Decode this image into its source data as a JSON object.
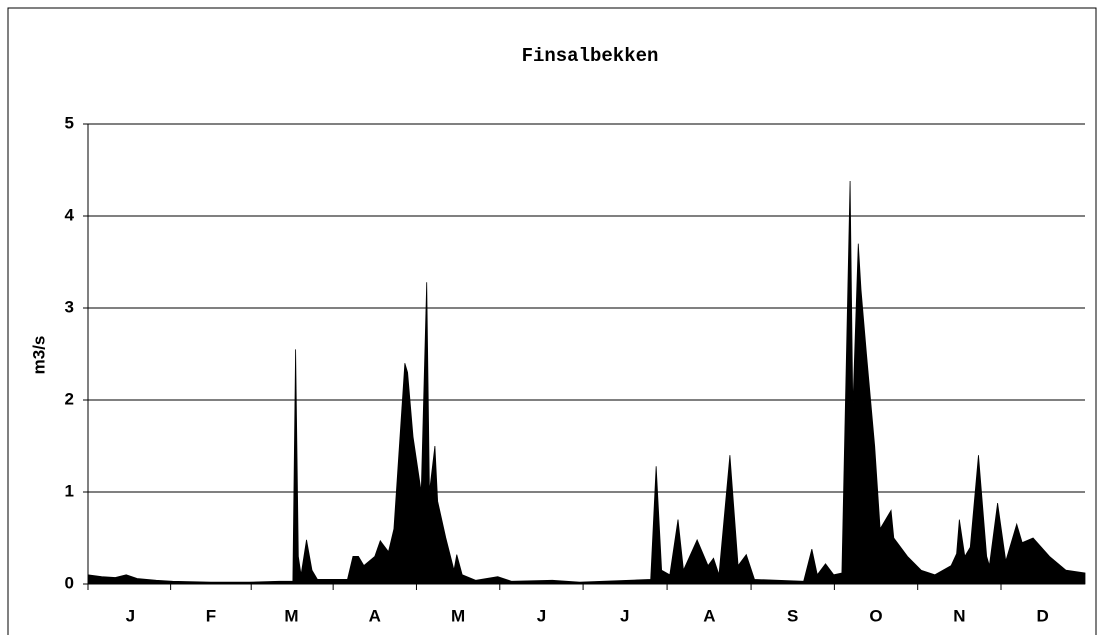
{
  "chart_data": {
    "type": "area",
    "title": "Finsalbekken",
    "y_label": "m3/s",
    "color": "#000000",
    "grid": true,
    "xlim": [
      0,
      365
    ],
    "xticks": [
      {
        "value": 15.5,
        "label": "J"
      },
      {
        "value": 45,
        "label": "F"
      },
      {
        "value": 74.5,
        "label": "M"
      },
      {
        "value": 105,
        "label": "A"
      },
      {
        "value": 135.5,
        "label": "M"
      },
      {
        "value": 166,
        "label": "J"
      },
      {
        "value": 196.5,
        "label": "J"
      },
      {
        "value": 227.5,
        "label": "A"
      },
      {
        "value": 258,
        "label": "S"
      },
      {
        "value": 288.5,
        "label": "O"
      },
      {
        "value": 319,
        "label": "N"
      },
      {
        "value": 349.5,
        "label": "D"
      }
    ],
    "ylim": [
      0,
      5
    ],
    "yticks": [
      0,
      1,
      2,
      3,
      4,
      5
    ],
    "x": [
      0,
      5,
      10,
      14,
      18,
      25,
      31,
      45,
      59,
      70,
      75,
      76,
      77,
      78,
      80,
      82,
      84,
      95,
      97,
      99,
      101,
      105,
      107,
      110,
      112,
      114,
      116,
      117,
      119,
      122,
      124,
      125,
      127,
      128,
      131,
      134,
      135,
      137,
      142,
      150,
      155,
      170,
      180,
      206,
      208,
      210,
      213,
      216,
      218,
      223,
      227,
      229,
      231,
      235,
      238,
      241,
      244,
      262,
      265,
      267,
      270,
      273,
      276,
      279,
      280,
      282,
      283,
      285,
      288,
      290,
      294,
      295,
      300,
      305,
      310,
      316,
      318,
      319,
      321,
      323,
      326,
      329,
      330,
      333,
      336,
      340,
      342,
      346,
      352,
      358,
      365
    ],
    "values": [
      0.1,
      0.08,
      0.07,
      0.1,
      0.06,
      0.04,
      0.03,
      0.02,
      0.02,
      0.03,
      0.03,
      2.55,
      0.3,
      0.1,
      0.48,
      0.15,
      0.05,
      0.05,
      0.3,
      0.3,
      0.2,
      0.3,
      0.47,
      0.35,
      0.6,
      1.5,
      2.4,
      2.3,
      1.6,
      1.0,
      3.28,
      1.0,
      1.5,
      0.9,
      0.5,
      0.15,
      0.32,
      0.1,
      0.04,
      0.08,
      0.03,
      0.04,
      0.02,
      0.05,
      1.28,
      0.15,
      0.1,
      0.7,
      0.15,
      0.48,
      0.2,
      0.28,
      0.1,
      1.4,
      0.2,
      0.32,
      0.05,
      0.03,
      0.38,
      0.1,
      0.22,
      0.1,
      0.12,
      4.38,
      1.9,
      3.7,
      3.2,
      2.5,
      1.5,
      0.6,
      0.8,
      0.5,
      0.3,
      0.15,
      0.1,
      0.2,
      0.33,
      0.7,
      0.3,
      0.4,
      1.4,
      0.3,
      0.2,
      0.88,
      0.25,
      0.65,
      0.45,
      0.5,
      0.3,
      0.15,
      0.12
    ]
  }
}
